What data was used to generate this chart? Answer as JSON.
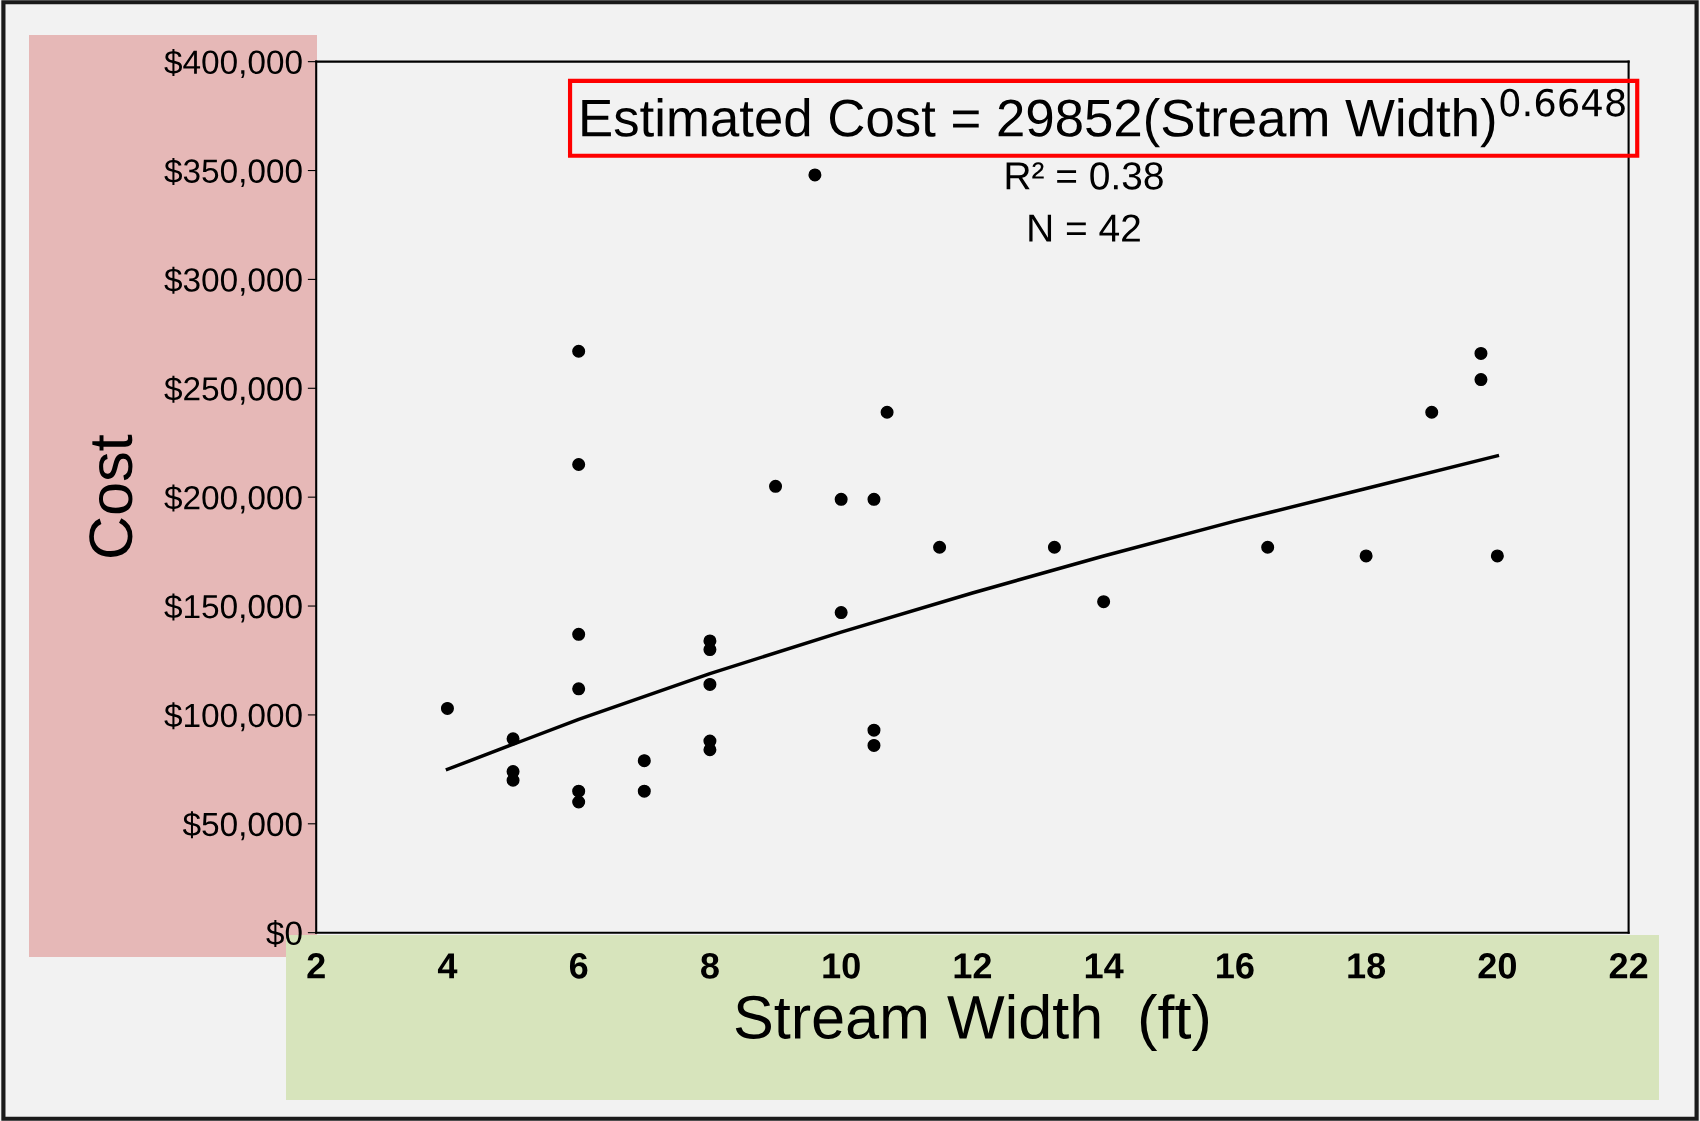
{
  "chart_data": {
    "type": "scatter",
    "xlabel": "Stream Width  (ft)",
    "ylabel": "Cost",
    "annotations": [
      "Estimated Cost = 29852(Stream Width)$^{0.6648}$",
      "R² = 0.38",
      "N = 42"
    ],
    "xlim": [
      2,
      22
    ],
    "xticks": [
      2,
      4,
      6,
      8,
      10,
      12,
      14,
      16,
      18,
      20,
      22
    ],
    "ylim": [
      0,
      400000
    ],
    "yticks": [
      {
        "value": 0,
        "label": "$0"
      },
      {
        "value": 50000,
        "label": "$50,000"
      },
      {
        "value": 100000,
        "label": "$100,000"
      },
      {
        "value": 150000,
        "label": "$150,000"
      },
      {
        "value": 200000,
        "label": "$200,000"
      },
      {
        "value": 250000,
        "label": "$250,000"
      },
      {
        "value": 300000,
        "label": "$300,000"
      },
      {
        "value": 350000,
        "label": "$350,000"
      },
      {
        "value": 400000,
        "label": "$400,000"
      }
    ],
    "grid": false,
    "marker": "circle",
    "series": [
      {
        "color": "#000000",
        "x": [
          4,
          5,
          5,
          5,
          6,
          6,
          6,
          6,
          6,
          6,
          7,
          7,
          8,
          8,
          8,
          8,
          8,
          9.6,
          9,
          10,
          10,
          10.5,
          10.5,
          10.5,
          10.7,
          11.5,
          13.25,
          14,
          16.5,
          18,
          19,
          19.75,
          19.75,
          20
        ],
        "values": [
          103000,
          89000,
          74000,
          70000,
          267000,
          215000,
          137000,
          112000,
          65000,
          60000,
          79000,
          65000,
          134000,
          130000,
          114000,
          88000,
          84000,
          348000,
          205000,
          199000,
          147000,
          199000,
          93000,
          86000,
          239000,
          177000,
          177000,
          152000,
          177000,
          173000,
          239000,
          266000,
          254000,
          173000
        ]
      },
      {
        "type": "line",
        "color": "#000000",
        "marker": "none",
        "x": [
          4,
          6,
          8,
          10,
          12,
          14,
          16,
          18,
          20
        ],
        "values": [
          75000,
          98000,
          119000,
          138000,
          156000,
          173000,
          189000,
          204000,
          219000
        ]
      }
    ]
  }
}
